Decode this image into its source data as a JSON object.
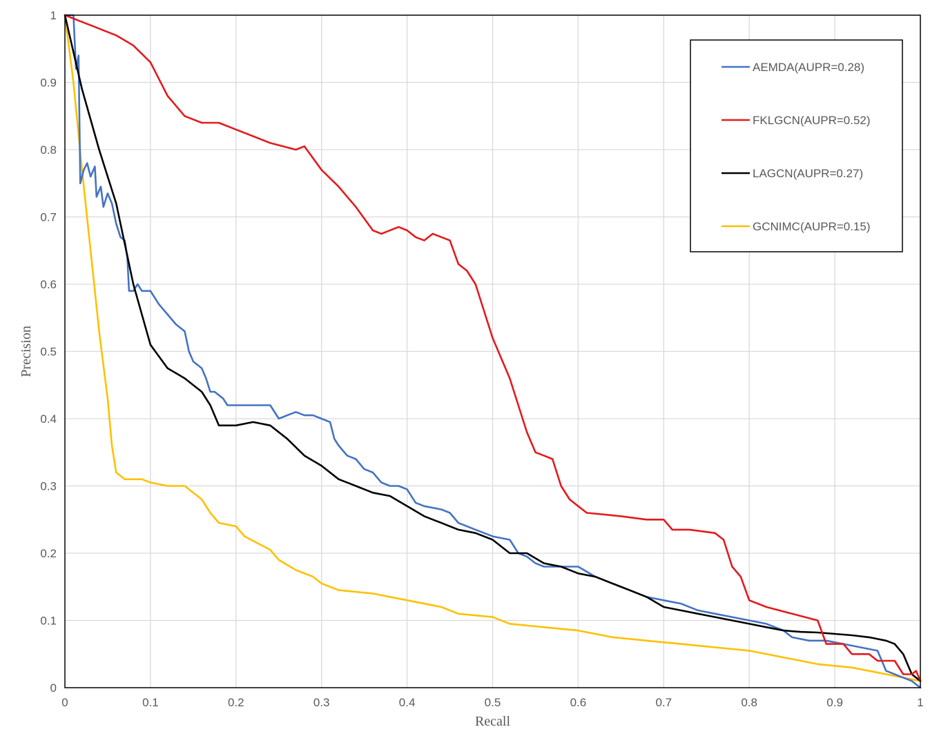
{
  "chart_data": {
    "type": "line",
    "xlabel": "Recall",
    "ylabel": "Precision",
    "xlim": [
      0,
      1
    ],
    "ylim": [
      0,
      1
    ],
    "grid": true,
    "legend_position": "top-right",
    "x_ticks": [
      "0",
      "0.1",
      "0.2",
      "0.3",
      "0.4",
      "0.5",
      "0.6",
      "0.7",
      "0.8",
      "0.9",
      "1"
    ],
    "y_ticks": [
      "0",
      "0.1",
      "0.2",
      "0.3",
      "0.4",
      "0.5",
      "0.6",
      "0.7",
      "0.8",
      "0.9",
      "1"
    ],
    "series": [
      {
        "name": "AEMDA(AUPR=0.28)",
        "color": "#4472c4",
        "points": [
          [
            0,
            1
          ],
          [
            0.01,
            1
          ],
          [
            0.013,
            0.92
          ],
          [
            0.016,
            0.94
          ],
          [
            0.018,
            0.75
          ],
          [
            0.022,
            0.77
          ],
          [
            0.026,
            0.78
          ],
          [
            0.03,
            0.76
          ],
          [
            0.035,
            0.775
          ],
          [
            0.037,
            0.73
          ],
          [
            0.042,
            0.745
          ],
          [
            0.045,
            0.715
          ],
          [
            0.05,
            0.735
          ],
          [
            0.055,
            0.72
          ],
          [
            0.06,
            0.69
          ],
          [
            0.065,
            0.67
          ],
          [
            0.07,
            0.665
          ],
          [
            0.073,
            0.64
          ],
          [
            0.075,
            0.59
          ],
          [
            0.08,
            0.59
          ],
          [
            0.085,
            0.6
          ],
          [
            0.09,
            0.59
          ],
          [
            0.1,
            0.59
          ],
          [
            0.11,
            0.57
          ],
          [
            0.12,
            0.555
          ],
          [
            0.13,
            0.54
          ],
          [
            0.14,
            0.53
          ],
          [
            0.145,
            0.5
          ],
          [
            0.15,
            0.485
          ],
          [
            0.16,
            0.475
          ],
          [
            0.165,
            0.46
          ],
          [
            0.17,
            0.44
          ],
          [
            0.175,
            0.44
          ],
          [
            0.185,
            0.43
          ],
          [
            0.19,
            0.42
          ],
          [
            0.2,
            0.42
          ],
          [
            0.22,
            0.42
          ],
          [
            0.24,
            0.42
          ],
          [
            0.25,
            0.4
          ],
          [
            0.26,
            0.405
          ],
          [
            0.27,
            0.41
          ],
          [
            0.28,
            0.405
          ],
          [
            0.29,
            0.405
          ],
          [
            0.3,
            0.4
          ],
          [
            0.31,
            0.395
          ],
          [
            0.315,
            0.37
          ],
          [
            0.32,
            0.36
          ],
          [
            0.33,
            0.345
          ],
          [
            0.34,
            0.34
          ],
          [
            0.35,
            0.325
          ],
          [
            0.36,
            0.32
          ],
          [
            0.37,
            0.305
          ],
          [
            0.38,
            0.3
          ],
          [
            0.39,
            0.3
          ],
          [
            0.4,
            0.295
          ],
          [
            0.41,
            0.275
          ],
          [
            0.42,
            0.27
          ],
          [
            0.44,
            0.265
          ],
          [
            0.45,
            0.26
          ],
          [
            0.46,
            0.245
          ],
          [
            0.48,
            0.235
          ],
          [
            0.5,
            0.225
          ],
          [
            0.52,
            0.22
          ],
          [
            0.53,
            0.2
          ],
          [
            0.54,
            0.195
          ],
          [
            0.55,
            0.185
          ],
          [
            0.56,
            0.18
          ],
          [
            0.6,
            0.18
          ],
          [
            0.62,
            0.165
          ],
          [
            0.64,
            0.155
          ],
          [
            0.66,
            0.145
          ],
          [
            0.68,
            0.135
          ],
          [
            0.7,
            0.13
          ],
          [
            0.72,
            0.125
          ],
          [
            0.74,
            0.115
          ],
          [
            0.76,
            0.11
          ],
          [
            0.78,
            0.105
          ],
          [
            0.8,
            0.1
          ],
          [
            0.82,
            0.095
          ],
          [
            0.84,
            0.085
          ],
          [
            0.85,
            0.075
          ],
          [
            0.87,
            0.07
          ],
          [
            0.89,
            0.07
          ],
          [
            0.91,
            0.065
          ],
          [
            0.93,
            0.06
          ],
          [
            0.95,
            0.055
          ],
          [
            0.96,
            0.025
          ],
          [
            0.98,
            0.015
          ],
          [
            0.99,
            0.01
          ],
          [
            1,
            0
          ]
        ]
      },
      {
        "name": "FKLGCN(AUPR=0.52)",
        "color": "#e31a1c",
        "points": [
          [
            0,
            1
          ],
          [
            0.03,
            0.985
          ],
          [
            0.06,
            0.97
          ],
          [
            0.08,
            0.955
          ],
          [
            0.1,
            0.93
          ],
          [
            0.12,
            0.88
          ],
          [
            0.14,
            0.85
          ],
          [
            0.16,
            0.84
          ],
          [
            0.18,
            0.84
          ],
          [
            0.2,
            0.83
          ],
          [
            0.22,
            0.82
          ],
          [
            0.24,
            0.81
          ],
          [
            0.27,
            0.8
          ],
          [
            0.28,
            0.805
          ],
          [
            0.3,
            0.77
          ],
          [
            0.32,
            0.745
          ],
          [
            0.34,
            0.715
          ],
          [
            0.36,
            0.68
          ],
          [
            0.37,
            0.675
          ],
          [
            0.39,
            0.685
          ],
          [
            0.4,
            0.68
          ],
          [
            0.41,
            0.67
          ],
          [
            0.42,
            0.665
          ],
          [
            0.43,
            0.675
          ],
          [
            0.45,
            0.665
          ],
          [
            0.46,
            0.63
          ],
          [
            0.47,
            0.62
          ],
          [
            0.48,
            0.6
          ],
          [
            0.49,
            0.56
          ],
          [
            0.5,
            0.52
          ],
          [
            0.51,
            0.49
          ],
          [
            0.52,
            0.46
          ],
          [
            0.53,
            0.42
          ],
          [
            0.54,
            0.38
          ],
          [
            0.55,
            0.35
          ],
          [
            0.56,
            0.345
          ],
          [
            0.57,
            0.34
          ],
          [
            0.575,
            0.32
          ],
          [
            0.58,
            0.3
          ],
          [
            0.59,
            0.28
          ],
          [
            0.6,
            0.27
          ],
          [
            0.61,
            0.26
          ],
          [
            0.65,
            0.255
          ],
          [
            0.68,
            0.25
          ],
          [
            0.7,
            0.25
          ],
          [
            0.71,
            0.235
          ],
          [
            0.73,
            0.235
          ],
          [
            0.76,
            0.23
          ],
          [
            0.77,
            0.22
          ],
          [
            0.78,
            0.18
          ],
          [
            0.79,
            0.165
          ],
          [
            0.8,
            0.13
          ],
          [
            0.82,
            0.12
          ],
          [
            0.85,
            0.11
          ],
          [
            0.88,
            0.1
          ],
          [
            0.89,
            0.065
          ],
          [
            0.91,
            0.065
          ],
          [
            0.92,
            0.05
          ],
          [
            0.94,
            0.05
          ],
          [
            0.95,
            0.04
          ],
          [
            0.97,
            0.04
          ],
          [
            0.98,
            0.02
          ],
          [
            0.99,
            0.02
          ],
          [
            0.995,
            0.025
          ],
          [
            1,
            0.01
          ]
        ]
      },
      {
        "name": "LAGCN(AUPR=0.27)",
        "color": "#000000",
        "points": [
          [
            0,
            1
          ],
          [
            0.02,
            0.89
          ],
          [
            0.04,
            0.8
          ],
          [
            0.06,
            0.72
          ],
          [
            0.08,
            0.6
          ],
          [
            0.1,
            0.51
          ],
          [
            0.12,
            0.475
          ],
          [
            0.14,
            0.46
          ],
          [
            0.16,
            0.44
          ],
          [
            0.17,
            0.42
          ],
          [
            0.18,
            0.39
          ],
          [
            0.2,
            0.39
          ],
          [
            0.22,
            0.395
          ],
          [
            0.24,
            0.39
          ],
          [
            0.26,
            0.37
          ],
          [
            0.28,
            0.345
          ],
          [
            0.3,
            0.33
          ],
          [
            0.32,
            0.31
          ],
          [
            0.34,
            0.3
          ],
          [
            0.36,
            0.29
          ],
          [
            0.38,
            0.285
          ],
          [
            0.4,
            0.27
          ],
          [
            0.42,
            0.255
          ],
          [
            0.44,
            0.245
          ],
          [
            0.46,
            0.235
          ],
          [
            0.48,
            0.23
          ],
          [
            0.5,
            0.22
          ],
          [
            0.52,
            0.2
          ],
          [
            0.54,
            0.2
          ],
          [
            0.56,
            0.185
          ],
          [
            0.58,
            0.18
          ],
          [
            0.6,
            0.17
          ],
          [
            0.62,
            0.165
          ],
          [
            0.64,
            0.155
          ],
          [
            0.66,
            0.145
          ],
          [
            0.68,
            0.135
          ],
          [
            0.7,
            0.12
          ],
          [
            0.72,
            0.115
          ],
          [
            0.74,
            0.11
          ],
          [
            0.76,
            0.105
          ],
          [
            0.78,
            0.1
          ],
          [
            0.8,
            0.095
          ],
          [
            0.82,
            0.09
          ],
          [
            0.84,
            0.085
          ],
          [
            0.86,
            0.083
          ],
          [
            0.88,
            0.082
          ],
          [
            0.9,
            0.08
          ],
          [
            0.92,
            0.078
          ],
          [
            0.94,
            0.075
          ],
          [
            0.96,
            0.07
          ],
          [
            0.97,
            0.065
          ],
          [
            0.98,
            0.05
          ],
          [
            0.99,
            0.02
          ],
          [
            1,
            0.01
          ]
        ]
      },
      {
        "name": "GCNIMC(AUPR=0.15)",
        "color": "#ffc000",
        "points": [
          [
            0,
            1
          ],
          [
            0.01,
            0.9
          ],
          [
            0.02,
            0.77
          ],
          [
            0.03,
            0.65
          ],
          [
            0.04,
            0.53
          ],
          [
            0.05,
            0.43
          ],
          [
            0.055,
            0.36
          ],
          [
            0.06,
            0.32
          ],
          [
            0.07,
            0.31
          ],
          [
            0.09,
            0.31
          ],
          [
            0.1,
            0.305
          ],
          [
            0.12,
            0.3
          ],
          [
            0.14,
            0.3
          ],
          [
            0.16,
            0.28
          ],
          [
            0.17,
            0.26
          ],
          [
            0.18,
            0.245
          ],
          [
            0.2,
            0.24
          ],
          [
            0.21,
            0.225
          ],
          [
            0.24,
            0.205
          ],
          [
            0.25,
            0.19
          ],
          [
            0.27,
            0.175
          ],
          [
            0.29,
            0.165
          ],
          [
            0.3,
            0.155
          ],
          [
            0.32,
            0.145
          ],
          [
            0.36,
            0.14
          ],
          [
            0.4,
            0.13
          ],
          [
            0.44,
            0.12
          ],
          [
            0.46,
            0.11
          ],
          [
            0.5,
            0.105
          ],
          [
            0.52,
            0.095
          ],
          [
            0.56,
            0.09
          ],
          [
            0.6,
            0.085
          ],
          [
            0.64,
            0.075
          ],
          [
            0.68,
            0.07
          ],
          [
            0.72,
            0.065
          ],
          [
            0.76,
            0.06
          ],
          [
            0.8,
            0.055
          ],
          [
            0.84,
            0.045
          ],
          [
            0.88,
            0.035
          ],
          [
            0.92,
            0.03
          ],
          [
            0.96,
            0.02
          ],
          [
            1,
            0.01
          ]
        ]
      }
    ]
  }
}
